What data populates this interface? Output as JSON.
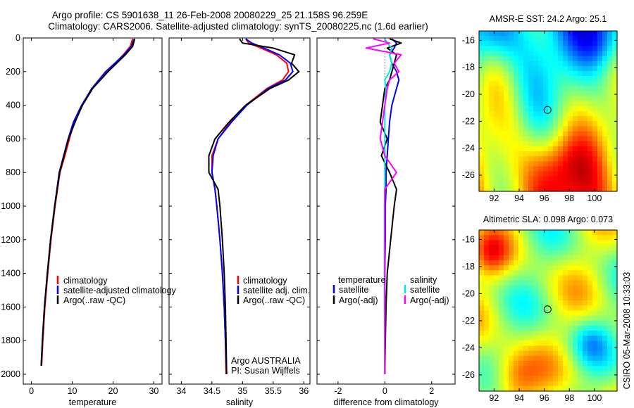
{
  "header": {
    "line1": "Argo profile: CS 5901638_11 26-Feb-2008 20080229_25 21.158S 96.259E",
    "line2": "Climatology: CARS2006. Satellite-adjusted climatology: synTS_20080225.nc (1.6d earlier)"
  },
  "footer_stamp": "CSIRO 05-Mar-2008 10:33:03",
  "colors": {
    "climatology": "#ff0000",
    "satellite": "#0000ff",
    "argo": "#000000",
    "sal_satellite": "#00e5e5",
    "sal_argo": "#ff00ff",
    "zero_line": "#0000ff"
  },
  "chart_data": [
    {
      "type": "line",
      "panel": "temperature",
      "xlabel": "temperature",
      "ylabel": "",
      "xlim": [
        -2,
        32
      ],
      "ylim": [
        2000,
        0
      ],
      "xticks": [
        0,
        10,
        20,
        30
      ],
      "yticks": [
        0,
        200,
        400,
        600,
        800,
        1000,
        1200,
        1400,
        1600,
        1800,
        2000
      ],
      "depth": [
        5,
        50,
        100,
        200,
        300,
        400,
        500,
        600,
        700,
        800,
        1000,
        1200,
        1400,
        1600,
        1800,
        1950
      ],
      "series": [
        {
          "name": "climatology",
          "color": "#ff0000",
          "values": [
            24.8,
            24.2,
            22.5,
            18.5,
            15.0,
            12.5,
            10.5,
            9.3,
            8.2,
            7.0,
            5.8,
            4.8,
            4.0,
            3.3,
            2.8,
            2.5
          ]
        },
        {
          "name": "satellite-adjusted climatology",
          "color": "#0000ff",
          "values": [
            25.2,
            24.5,
            22.7,
            18.2,
            14.8,
            12.3,
            10.3,
            9.0,
            7.9,
            6.8,
            5.7,
            4.7,
            3.9,
            3.2,
            2.7,
            2.4
          ]
        },
        {
          "name": "Argo(..raw -QC)",
          "color": "#000000",
          "values": [
            25.3,
            24.8,
            23.0,
            18.8,
            15.0,
            12.5,
            10.7,
            9.1,
            8.0,
            6.9,
            5.7,
            4.7,
            3.9,
            3.2,
            2.7,
            2.4
          ]
        }
      ]
    },
    {
      "type": "line",
      "panel": "salinity",
      "xlabel": "salinity",
      "xlim": [
        33.8,
        36.1
      ],
      "ylim": [
        2000,
        0
      ],
      "xticks": [
        34,
        34.5,
        35,
        35.5,
        36
      ],
      "depth": [
        5,
        30,
        60,
        100,
        150,
        200,
        250,
        300,
        400,
        500,
        600,
        700,
        800,
        900,
        1000,
        1200,
        1400,
        1600,
        1800,
        2000
      ],
      "series": [
        {
          "name": "climatology",
          "color": "#ff0000",
          "values": [
            35.05,
            35.1,
            35.3,
            35.55,
            35.72,
            35.75,
            35.65,
            35.4,
            35.05,
            34.8,
            34.6,
            34.5,
            34.5,
            34.55,
            34.58,
            34.63,
            34.67,
            34.7,
            34.72,
            34.73
          ]
        },
        {
          "name": "satellite adj. clim.",
          "color": "#0000ff",
          "values": [
            35.05,
            35.15,
            35.35,
            35.6,
            35.78,
            35.82,
            35.7,
            35.42,
            35.07,
            34.82,
            34.6,
            34.52,
            34.5,
            34.55,
            34.58,
            34.63,
            34.67,
            34.7,
            34.72,
            34.74
          ]
        },
        {
          "name": "Argo(..raw -QC)",
          "color": "#000000",
          "values": [
            34.95,
            35.0,
            35.5,
            35.85,
            35.8,
            35.92,
            35.75,
            35.45,
            35.05,
            34.78,
            34.55,
            34.45,
            34.45,
            34.6,
            34.63,
            34.67,
            34.7,
            34.72,
            34.73,
            34.74
          ]
        }
      ]
    },
    {
      "type": "line",
      "panel": "difference",
      "xlabel": "difference from climatology",
      "xlim": [
        -2.9,
        3.0
      ],
      "ylim": [
        2000,
        0
      ],
      "xticks": [
        -2,
        0,
        2
      ],
      "legend_heading_temperature": "temperature",
      "legend_heading_salinity": "salinity",
      "depth": [
        5,
        30,
        60,
        100,
        150,
        200,
        250,
        300,
        400,
        500,
        600,
        700,
        800,
        900,
        1000,
        1200,
        1400,
        1600,
        1800,
        2000
      ],
      "series": [
        {
          "name": "satellite",
          "group": "temperature",
          "color": "#0000ff",
          "values": [
            0.3,
            0.5,
            0.4,
            0.2,
            0.3,
            0.5,
            0.6,
            0.5,
            0.3,
            0.2,
            0.15,
            0.1,
            0.05,
            0.05,
            0.02,
            0.02,
            0.0,
            0.0,
            0.0,
            0.0
          ]
        },
        {
          "name": "Argo(-adj)",
          "group": "temperature",
          "color": "#000000",
          "values": [
            0.2,
            0.7,
            0.1,
            0.5,
            0.4,
            0.3,
            0.2,
            0.0,
            -0.1,
            -0.2,
            0.1,
            -0.15,
            0.2,
            0.5,
            0.4,
            0.25,
            0.1,
            0.05,
            0.02,
            0.0
          ]
        },
        {
          "name": "satellite",
          "group": "salinity",
          "color": "#00e5e5",
          "values": [
            0.0,
            0.1,
            0.3,
            0.2,
            0.3,
            0.2,
            0.0,
            0.05,
            0.0,
            0.0,
            0.0,
            0.0,
            0.0,
            0.0,
            -0.02,
            -0.02,
            -0.02,
            -0.02,
            -0.01,
            -0.01
          ]
        },
        {
          "name": "Argo(-adj)",
          "group": "salinity",
          "color": "#ff00ff",
          "values": [
            -0.5,
            0.2,
            -0.8,
            0.7,
            0.4,
            0.6,
            0.2,
            0.1,
            0.0,
            -0.1,
            -0.2,
            0.0,
            0.5,
            0.0,
            0.0,
            0.0,
            0.0,
            0.0,
            0.0,
            0.0
          ]
        }
      ]
    },
    {
      "type": "heatmap",
      "panel": "AMSR-E SST",
      "title": "AMSR-E SST: 24.2  Argo: 25.1",
      "xlim": [
        90.8,
        101.8
      ],
      "ylim": [
        -27.2,
        -15.3
      ],
      "xticks": [
        92,
        94,
        96,
        98,
        100
      ],
      "yticks": [
        -16,
        -18,
        -20,
        -22,
        -24,
        -26
      ],
      "marker": {
        "lon": 96.259,
        "lat": -21.158
      },
      "pattern": "sst"
    },
    {
      "type": "heatmap",
      "panel": "Altimetric SLA",
      "title": "Altimetric SLA: 0.098  Argo: 0.073",
      "xlim": [
        90.8,
        101.8
      ],
      "ylim": [
        -27.2,
        -15.3
      ],
      "xticks": [
        92,
        94,
        96,
        98,
        100
      ],
      "yticks": [
        -16,
        -18,
        -20,
        -22,
        -24,
        -26
      ],
      "marker": {
        "lon": 96.259,
        "lat": -21.158
      },
      "pattern": "sla"
    }
  ],
  "legends": {
    "temperature": [
      "climatology",
      "satellite-adjusted climatology",
      "Argo(..raw -QC)"
    ],
    "salinity": [
      "climatology",
      "satellite adj. clim.",
      "Argo(..raw -QC)"
    ]
  },
  "credit": {
    "line1": "Argo AUSTRALIA",
    "line2": "PI: Susan Wijffels"
  }
}
